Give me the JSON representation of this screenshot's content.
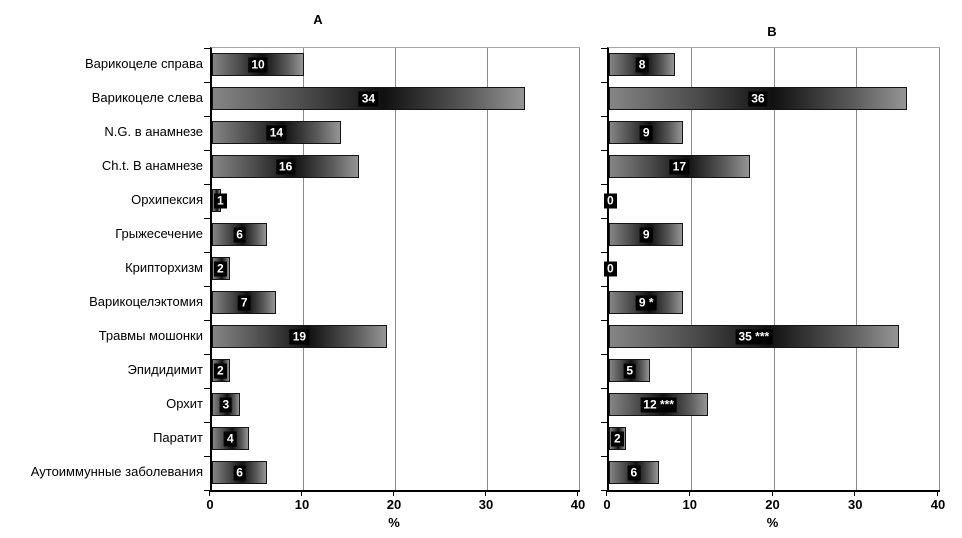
{
  "figure": {
    "panels": [
      {
        "title": "A"
      },
      {
        "title": "B"
      }
    ]
  },
  "chart_data": {
    "type": "bar",
    "orientation": "horizontal",
    "title": "",
    "xlabel": "%",
    "ylabel": "",
    "xlim": [
      0,
      40
    ],
    "xticks": [
      0,
      10,
      20,
      30,
      40
    ],
    "grid": "vertical",
    "legend": "none",
    "categories": [
      "Варикоцеле справа",
      "Варикоцеле слева",
      "N.G. в анамнезе",
      "Ch.t. В анамнезе",
      "Орхипексия",
      "Грыжесечение",
      "Крипторхизм",
      "Варикоцелэктомия",
      "Травмы мошонки",
      "Эпидидимит",
      "Орхит",
      "Паратит",
      "Аутоиммунные заболевания"
    ],
    "series": [
      {
        "name": "A",
        "values": [
          10,
          34,
          14,
          16,
          1,
          6,
          2,
          7,
          19,
          2,
          3,
          4,
          6
        ],
        "labels": [
          "10",
          "34",
          "14",
          "16",
          "1",
          "6",
          "2",
          "7",
          "19",
          "2",
          "3",
          "4",
          "6"
        ]
      },
      {
        "name": "B",
        "values": [
          8,
          36,
          9,
          17,
          0,
          9,
          0,
          9,
          35,
          5,
          12,
          2,
          6
        ],
        "labels": [
          "8",
          "36",
          "9",
          "17",
          "0",
          "9",
          "0",
          "9 *",
          "35 ***",
          "5",
          "12 ***",
          "2",
          "6"
        ]
      }
    ],
    "colors": {
      "bar_gradient": [
        "#858585",
        "#101010",
        "#959595"
      ],
      "bar_border": "#141414",
      "value_label_bg": "#000000",
      "value_label_fg": "#ffffff",
      "gridline": "#8c8c8c",
      "axis": "#000000",
      "background": "#ffffff"
    }
  }
}
